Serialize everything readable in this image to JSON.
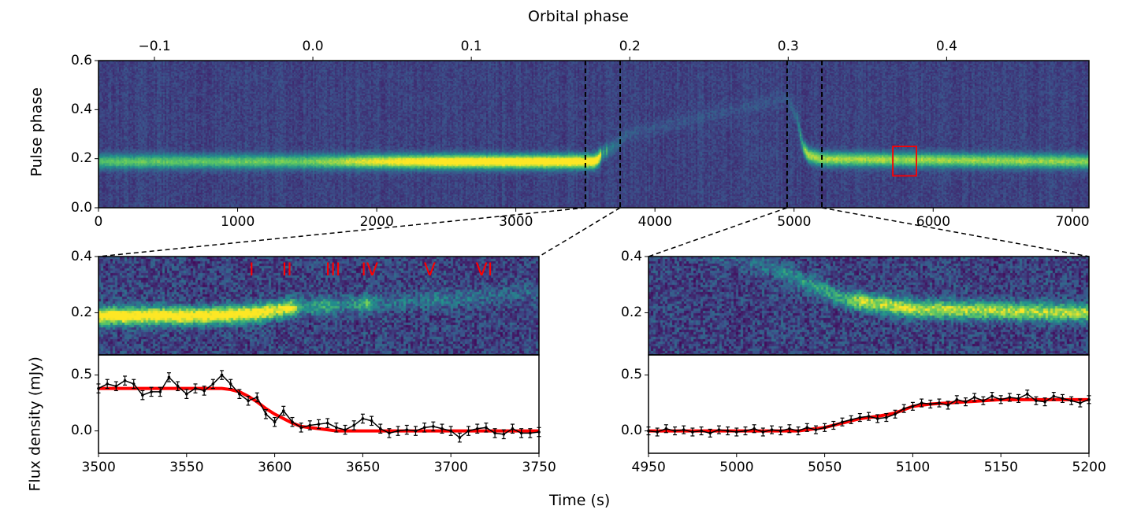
{
  "chart_data": [
    {
      "type": "heatmap",
      "panel": "overview",
      "xlabel_top": "Orbital phase",
      "ylabel": "Pulse phase",
      "xlim": [
        0,
        7120
      ],
      "ylim": [
        0.0,
        0.6
      ],
      "xticks": [
        "0",
        "1000",
        "2000",
        "3000",
        "4000",
        "5000",
        "6000",
        "7000"
      ],
      "yticks": [
        "0.0",
        "0.2",
        "0.4",
        "0.6"
      ],
      "top_axis": {
        "ticks": [
          "−0.1",
          "0.0",
          "0.1",
          "0.2",
          "0.3",
          "0.4"
        ],
        "tick_values": [
          -0.1,
          0.0,
          0.1,
          0.2,
          0.3,
          0.4
        ],
        "phase_zero_time": 1541,
        "period_s": 11390
      },
      "colormap": "viridis",
      "pulse_amplitude_keyframes": [
        [
          0,
          0.55
        ],
        [
          1500,
          0.6
        ],
        [
          2000,
          0.85
        ],
        [
          2500,
          1
        ],
        [
          3580,
          1
        ],
        [
          3600,
          0.85
        ],
        [
          3610,
          0.8
        ],
        [
          3615,
          0.3
        ],
        [
          3630,
          0.45
        ],
        [
          3640,
          0.2
        ],
        [
          3652,
          0.5
        ],
        [
          3660,
          0.15
        ],
        [
          3690,
          0.22
        ],
        [
          3720,
          0.15
        ],
        [
          3800,
          0.08
        ],
        [
          4900,
          0.05
        ],
        [
          5000,
          0.12
        ],
        [
          5060,
          0.45
        ],
        [
          5070,
          0.75
        ],
        [
          5200,
          0.72
        ],
        [
          5700,
          0.7
        ],
        [
          7120,
          0.66
        ]
      ],
      "pulse_center_keyframes": [
        [
          0,
          0.19
        ],
        [
          3560,
          0.19
        ],
        [
          3590,
          0.2
        ],
        [
          3610,
          0.22
        ],
        [
          3640,
          0.23
        ],
        [
          3700,
          0.25
        ],
        [
          3800,
          0.3
        ],
        [
          4950,
          0.45
        ],
        [
          5020,
          0.36
        ],
        [
          5060,
          0.25
        ],
        [
          5100,
          0.215
        ],
        [
          5200,
          0.2
        ],
        [
          7120,
          0.19
        ]
      ],
      "vertical_dashed_lines": [
        3500,
        3750,
        4950,
        5200
      ],
      "highlight_box": {
        "x": [
          5710,
          5880
        ],
        "y": [
          0.13,
          0.25
        ],
        "color": "#ff0000"
      }
    },
    {
      "type": "heatmap",
      "panel": "zoom-left",
      "xlim": [
        3500,
        3750
      ],
      "ylim": [
        0.05,
        0.4
      ],
      "yticks": [
        "0.2",
        "0.4"
      ],
      "annotations": [
        {
          "text": "I",
          "x": 3587
        },
        {
          "text": "II",
          "x": 3607
        },
        {
          "text": "III",
          "x": 3633
        },
        {
          "text": "IV",
          "x": 3654
        },
        {
          "text": "V",
          "x": 3688
        },
        {
          "text": "VI",
          "x": 3719
        }
      ],
      "annotation_color": "#ff0000"
    },
    {
      "type": "line",
      "panel": "flux-left",
      "xlim": [
        3500,
        3750
      ],
      "ylim": [
        -0.2,
        0.68
      ],
      "xticks": [
        "3500",
        "3550",
        "3600",
        "3650",
        "3700",
        "3750"
      ],
      "yticks": [
        "0.0",
        "0.5"
      ],
      "x": [
        3500,
        3505,
        3510,
        3515,
        3520,
        3525,
        3530,
        3535,
        3540,
        3545,
        3550,
        3555,
        3560,
        3565,
        3570,
        3575,
        3580,
        3585,
        3590,
        3595,
        3600,
        3605,
        3610,
        3615,
        3620,
        3625,
        3630,
        3635,
        3640,
        3645,
        3650,
        3655,
        3660,
        3665,
        3670,
        3675,
        3680,
        3685,
        3690,
        3695,
        3700,
        3705,
        3710,
        3715,
        3720,
        3725,
        3730,
        3735,
        3740,
        3745,
        3750
      ],
      "series": [
        {
          "values": [
            0.38,
            0.42,
            0.4,
            0.45,
            0.42,
            0.32,
            0.35,
            0.35,
            0.48,
            0.4,
            0.33,
            0.38,
            0.36,
            0.42,
            0.5,
            0.42,
            0.33,
            0.27,
            0.3,
            0.15,
            0.08,
            0.18,
            0.08,
            0.03,
            0.05,
            0.06,
            0.07,
            0.03,
            0.01,
            0.05,
            0.11,
            0.09,
            0.02,
            -0.02,
            0.0,
            0.01,
            0.0,
            0.03,
            0.04,
            0.02,
            0.0,
            -0.06,
            0.0,
            0.02,
            0.03,
            -0.02,
            -0.03,
            0.02,
            -0.02,
            -0.02,
            -0.01
          ],
          "error": 0.04,
          "color": "#000000"
        },
        {
          "values": [
            0.38,
            0.38,
            0.38,
            0.38,
            0.38,
            0.38,
            0.38,
            0.38,
            0.38,
            0.38,
            0.38,
            0.38,
            0.38,
            0.38,
            0.38,
            0.37,
            0.35,
            0.31,
            0.26,
            0.2,
            0.15,
            0.11,
            0.07,
            0.04,
            0.03,
            0.02,
            0.01,
            0,
            0,
            0,
            0,
            0,
            0,
            0,
            0,
            0,
            0,
            0,
            0,
            0,
            0,
            0,
            0,
            0,
            0,
            0,
            0,
            0,
            0,
            0,
            0
          ],
          "color": "#ff0000"
        }
      ]
    },
    {
      "type": "heatmap",
      "panel": "zoom-right",
      "xlim": [
        4950,
        5200
      ],
      "ylim": [
        0.05,
        0.4
      ],
      "yticks": [
        "0.2",
        "0.4"
      ]
    },
    {
      "type": "line",
      "panel": "flux-right",
      "xlim": [
        4950,
        5200
      ],
      "ylim": [
        -0.2,
        0.68
      ],
      "xticks": [
        "4950",
        "5000",
        "5050",
        "5100",
        "5150",
        "5200"
      ],
      "yticks": [
        "0.0",
        "0.5"
      ],
      "x": [
        4950,
        4955,
        4960,
        4965,
        4970,
        4975,
        4980,
        4985,
        4990,
        4995,
        5000,
        5005,
        5010,
        5015,
        5020,
        5025,
        5030,
        5035,
        5040,
        5045,
        5050,
        5055,
        5060,
        5065,
        5070,
        5075,
        5080,
        5085,
        5090,
        5095,
        5100,
        5105,
        5110,
        5115,
        5120,
        5125,
        5130,
        5135,
        5140,
        5145,
        5150,
        5155,
        5160,
        5165,
        5170,
        5175,
        5180,
        5185,
        5190,
        5195,
        5200
      ],
      "series": [
        {
          "values": [
            0.0,
            -0.01,
            0.02,
            0.0,
            0.01,
            -0.01,
            0.0,
            -0.02,
            0.01,
            0.0,
            -0.01,
            0.0,
            0.02,
            -0.01,
            0.01,
            0.0,
            0.02,
            0.0,
            0.03,
            0.01,
            0.03,
            0.05,
            0.08,
            0.1,
            0.12,
            0.13,
            0.11,
            0.12,
            0.15,
            0.2,
            0.22,
            0.25,
            0.24,
            0.25,
            0.23,
            0.28,
            0.26,
            0.3,
            0.27,
            0.31,
            0.28,
            0.3,
            0.29,
            0.33,
            0.27,
            0.26,
            0.31,
            0.29,
            0.27,
            0.25,
            0.28
          ],
          "error": 0.035,
          "color": "#000000"
        },
        {
          "values": [
            0,
            0,
            0,
            0,
            0,
            0,
            0,
            0,
            0,
            0,
            0,
            0,
            0,
            0,
            0,
            0,
            0,
            0,
            0.01,
            0.02,
            0.03,
            0.05,
            0.07,
            0.09,
            0.11,
            0.12,
            0.13,
            0.145,
            0.16,
            0.19,
            0.22,
            0.23,
            0.24,
            0.245,
            0.25,
            0.255,
            0.26,
            0.265,
            0.27,
            0.275,
            0.28,
            0.28,
            0.28,
            0.28,
            0.28,
            0.28,
            0.28,
            0.28,
            0.28,
            0.28,
            0.28
          ],
          "color": "#ff0000"
        }
      ]
    }
  ],
  "labels": {
    "top_xlabel": "Orbital phase",
    "top_ylabel": "Pulse phase",
    "flux_ylabel": "Flux density (mJy)",
    "bottom_xlabel": "Time (s)"
  }
}
